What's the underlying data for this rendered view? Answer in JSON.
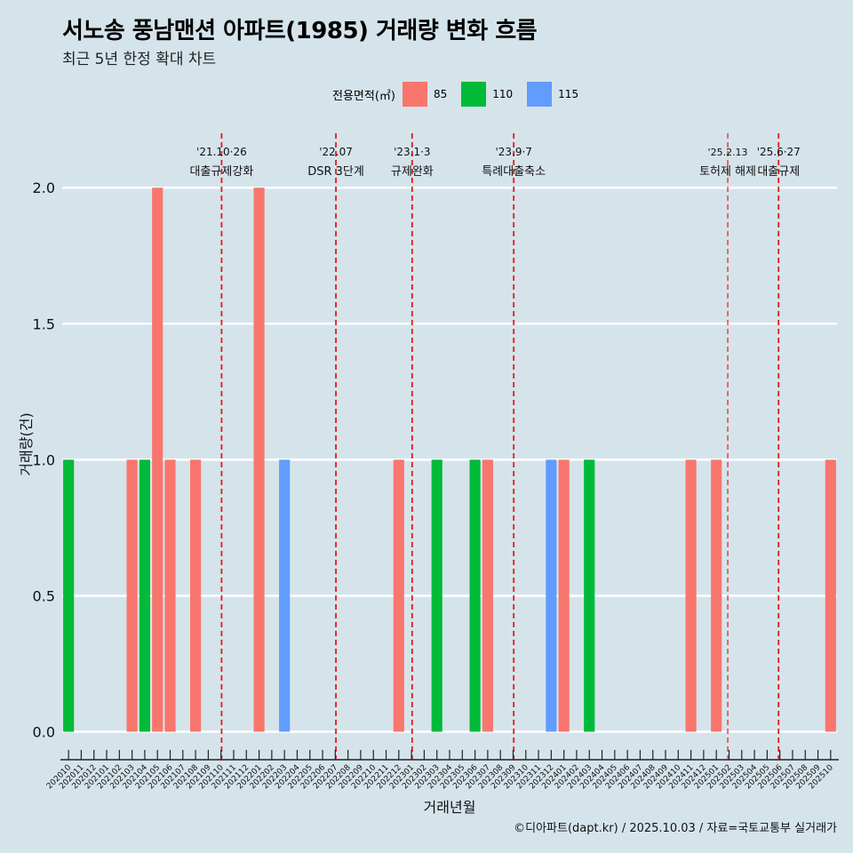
{
  "title": "서노송 풍남맨션 아파트(1985) 거래량 변화 흐름",
  "subtitle": "최근 5년 한정 확대 차트",
  "caption": "©디아파트(dapt.kr) / 2025.10.03 / 자료=국토교통부 실거래가",
  "legend": {
    "title": "전용면적(㎡)",
    "items": [
      {
        "label": "85",
        "color": "#f8766d"
      },
      {
        "label": "110",
        "color": "#00ba38"
      },
      {
        "label": "115",
        "color": "#619cff"
      }
    ]
  },
  "chart_data": {
    "type": "bar",
    "title": "서노송 풍남맨션 아파트(1985) 거래량 변화 흐름",
    "xlabel": "거래년월",
    "ylabel": "거래량(건)",
    "ylim": [
      -0.08,
      2.2
    ],
    "yticks": [
      0.0,
      0.5,
      1.0,
      1.5,
      2.0
    ],
    "ytick_labels": [
      "0.0",
      "0.5",
      "1.0",
      "1.5",
      "2.0"
    ],
    "categories": [
      "202010",
      "202011",
      "202012",
      "202101",
      "202102",
      "202103",
      "202104",
      "202105",
      "202106",
      "202107",
      "202108",
      "202109",
      "202110",
      "202111",
      "202112",
      "202201",
      "202202",
      "202203",
      "202204",
      "202205",
      "202206",
      "202207",
      "202208",
      "202209",
      "202210",
      "202211",
      "202212",
      "202301",
      "202302",
      "202303",
      "202304",
      "202305",
      "202306",
      "202307",
      "202308",
      "202309",
      "202310",
      "202311",
      "202312",
      "202401",
      "202402",
      "202403",
      "202404",
      "202405",
      "202406",
      "202407",
      "202408",
      "202409",
      "202410",
      "202411",
      "202412",
      "202501",
      "202502",
      "202503",
      "202504",
      "202505",
      "202506",
      "202507",
      "202508",
      "202509",
      "202510"
    ],
    "bars": [
      {
        "category": "202010",
        "series": "110",
        "value": 1
      },
      {
        "category": "202103",
        "series": "85",
        "value": 1
      },
      {
        "category": "202104",
        "series": "110",
        "value": 1
      },
      {
        "category": "202105",
        "series": "85",
        "value": 2
      },
      {
        "category": "202106",
        "series": "85",
        "value": 1
      },
      {
        "category": "202108",
        "series": "85",
        "value": 1
      },
      {
        "category": "202201",
        "series": "85",
        "value": 2
      },
      {
        "category": "202203",
        "series": "115",
        "value": 1
      },
      {
        "category": "202212",
        "series": "85",
        "value": 1
      },
      {
        "category": "202303",
        "series": "110",
        "value": 1
      },
      {
        "category": "202306",
        "series": "110",
        "value": 1
      },
      {
        "category": "202307",
        "series": "85",
        "value": 1
      },
      {
        "category": "202312",
        "series": "115",
        "value": 1
      },
      {
        "category": "202401",
        "series": "85",
        "value": 1
      },
      {
        "category": "202403",
        "series": "110",
        "value": 1
      },
      {
        "category": "202411",
        "series": "85",
        "value": 1
      },
      {
        "category": "202501",
        "series": "85",
        "value": 1
      },
      {
        "category": "202510",
        "series": "85",
        "value": 1
      }
    ],
    "events": [
      {
        "x": 12.55,
        "date": "'21.10·26",
        "label": "대출규제강화",
        "style": "thick"
      },
      {
        "x": 21.55,
        "date": "'22.07",
        "label": "DSR 3단계",
        "style": "thick"
      },
      {
        "x": 27.55,
        "date": "'23.1·3",
        "label": "규제완화",
        "style": "thick"
      },
      {
        "x": 35.55,
        "date": "'23.9·7",
        "label": "특례대출축소",
        "style": "thick"
      },
      {
        "x": 52.4,
        "date": "'25.2.13",
        "label": "토허제 해제",
        "style": "thin"
      },
      {
        "x": 56.4,
        "date": "'25.6·27",
        "label": "대출규제",
        "style": "thick"
      }
    ]
  }
}
